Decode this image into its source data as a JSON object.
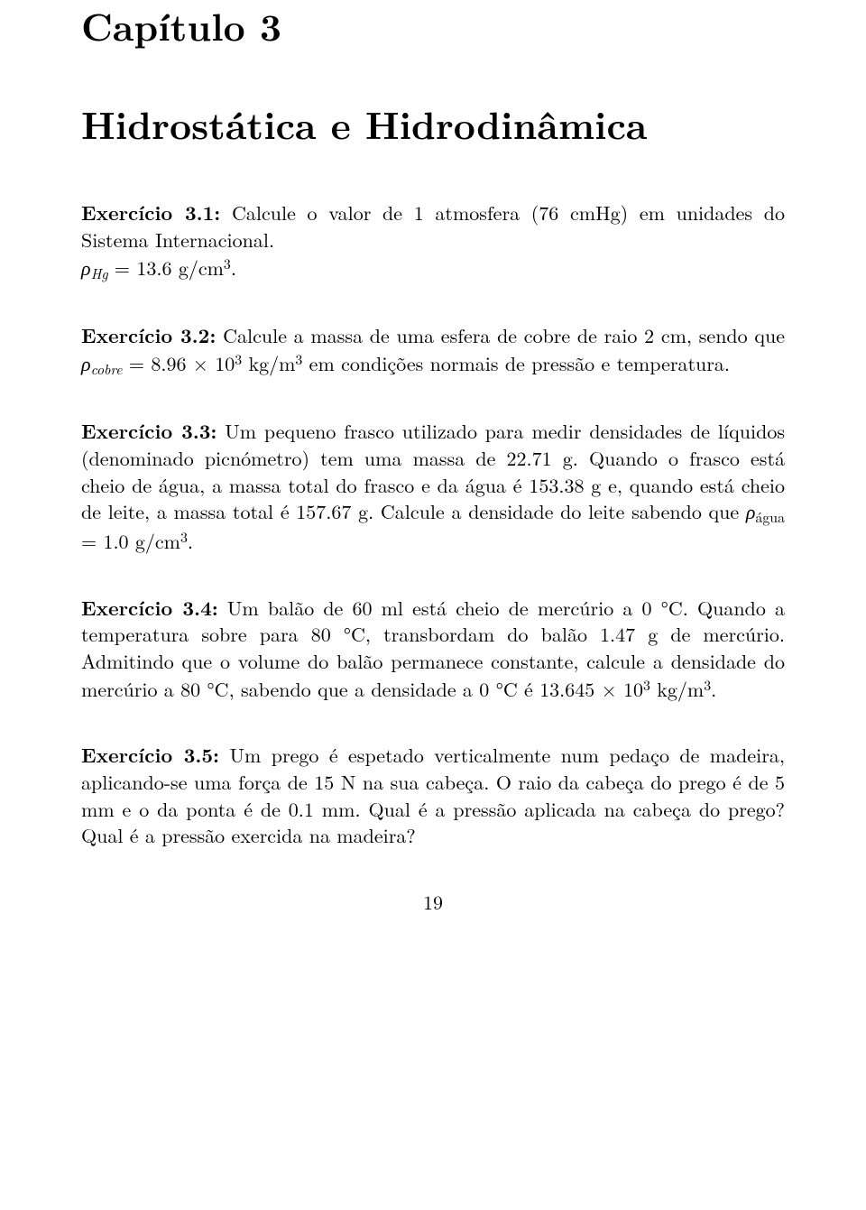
{
  "chapter_label": "Capítulo 3",
  "chapter_title": "Hidrostática e Hidrodinâmica",
  "page_number": "19",
  "exercises": {
    "e1": {
      "label": "Exercício 3.1:",
      "text_a": "Calcule o valor de 1 atmosfera (76 cmHg) em unidades do Sistema Internacional.",
      "rho": "ρ",
      "rho_sub": "Hg",
      "eq": " = 13.6 g/cm",
      "sup3": "3",
      "period": "."
    },
    "e2": {
      "label": "Exercício 3.2:",
      "text_a": "Calcule a massa de uma esfera de cobre de raio 2 cm, sendo que ",
      "rho": "ρ",
      "rho_sub": "cobre",
      "eq": " = 8.96 × 10",
      "sup3a": "3",
      "unit_a": " kg/m",
      "sup3b": "3",
      "text_b": " em condições normais de pressão e temperatura."
    },
    "e3": {
      "label": "Exercício 3.3:",
      "text_a": "Um pequeno frasco utilizado para medir densidades de líquidos (denominado picnómetro) tem uma massa de 22.71 g. Quando o frasco está cheio de água, a massa total do frasco e da água é 153.38 g e, quando está cheio de leite, a massa total é 157.67 g. Calcule a densidade do leite sabendo que ",
      "rho": "ρ",
      "rho_sub": "água",
      "eq": " = 1.0 g/cm",
      "sup3": "3",
      "period": "."
    },
    "e4": {
      "label": "Exercício 3.4:",
      "text_a": "Um balão de 60 ml está cheio de mercúrio a 0 °C. Quando a temperatura sobre para 80 °C, transbordam do balão 1.47 g de mercúrio. Admitindo que o volume do balão permanece constante, calcule a densidade do mercúrio a 80 °C, sabendo que a densidade a 0 °C é 13.645 × 10",
      "sup3a": "3",
      "unit_a": " kg/m",
      "sup3b": "3",
      "period": "."
    },
    "e5": {
      "label": "Exercício 3.5:",
      "text_a": "Um prego é espetado verticalmente num pedaço de madeira, aplicando-se uma força de 15 N na sua cabeça. O raio da cabeça do prego é de 5 mm e o da ponta é de 0.1 mm. Qual é a pressão aplicada na cabeça do prego? Qual é a pressão exercida na madeira?"
    }
  }
}
